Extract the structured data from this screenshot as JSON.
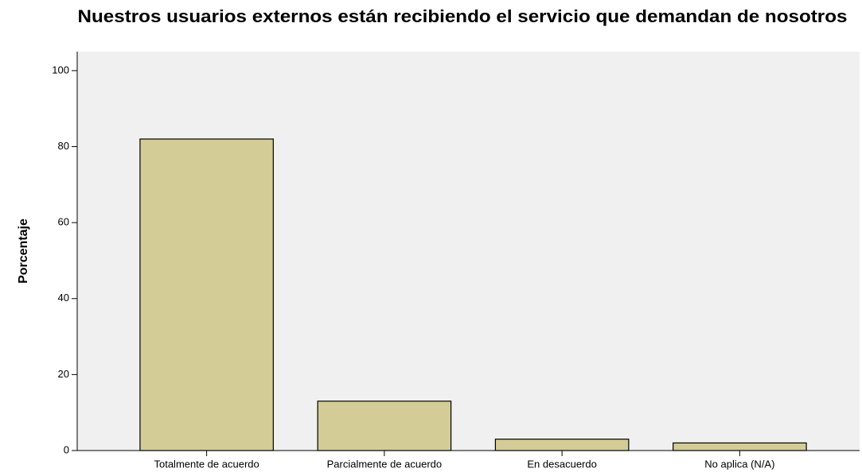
{
  "chart_data": {
    "type": "bar",
    "title": "Nuestros usuarios externos están recibiendo el servicio que demandan de nosotros",
    "y_label": "Porcentaje",
    "categories": [
      "Totalmente de acuerdo",
      "Parcialmente de acuerdo",
      "En desacuerdo",
      "No aplica (N/A)"
    ],
    "values": [
      82,
      13,
      3,
      2
    ],
    "color": "#d3cc97",
    "ylim": [
      0,
      105
    ],
    "yticks": [
      0,
      20,
      40,
      60,
      80,
      100
    ],
    "grid": false
  }
}
